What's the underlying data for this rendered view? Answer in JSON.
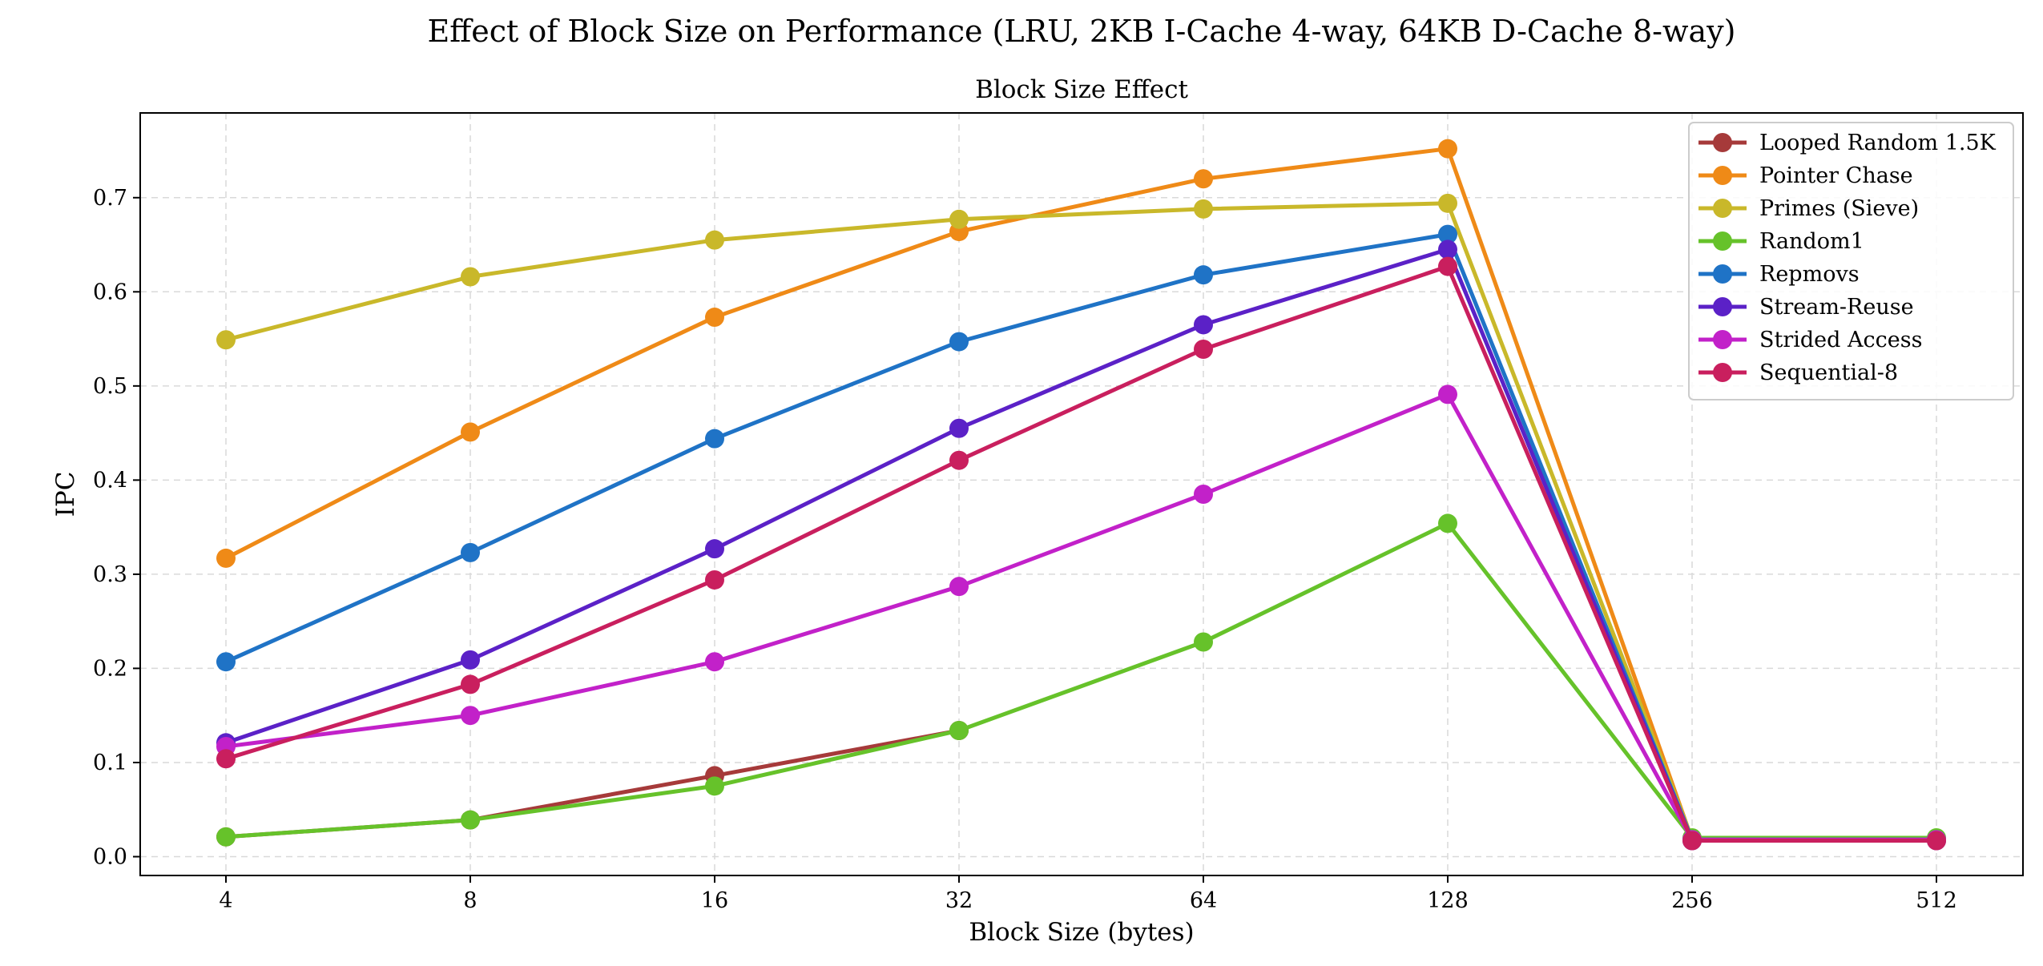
{
  "suptitle": "Effect of Block Size on Performance (LRU, 2KB I-Cache 4-way, 64KB D-Cache 8-way)",
  "chart_data": {
    "type": "line",
    "title": "Block Size Effect",
    "xlabel": "Block Size (bytes)",
    "ylabel": "IPC",
    "categories": [
      "4",
      "8",
      "16",
      "32",
      "64",
      "128",
      "256",
      "512"
    ],
    "ylim": [
      -0.02,
      0.79
    ],
    "yticks": [
      "0.0",
      "0.1",
      "0.2",
      "0.3",
      "0.4",
      "0.5",
      "0.6",
      "0.7"
    ],
    "grid": true,
    "legend_position": "top-right",
    "series": [
      {
        "name": "Looped Random 1.5K",
        "color": "#a63a3a",
        "values": [
          0.021,
          0.039,
          0.086,
          0.134,
          null,
          null,
          null,
          null
        ]
      },
      {
        "name": "Pointer Chase",
        "color": "#ef8a17",
        "values": [
          0.317,
          0.451,
          0.573,
          0.664,
          0.72,
          0.752,
          0.018,
          0.018
        ]
      },
      {
        "name": "Primes (Sieve)",
        "color": "#c9b82a",
        "values": [
          0.549,
          0.616,
          0.655,
          0.677,
          0.688,
          0.694,
          0.019,
          0.019
        ]
      },
      {
        "name": "Random1",
        "color": "#66c22a",
        "values": [
          0.021,
          0.039,
          0.075,
          0.134,
          0.228,
          0.354,
          0.02,
          0.02
        ]
      },
      {
        "name": "Repmovs",
        "color": "#1f73c6",
        "values": [
          0.207,
          0.323,
          0.444,
          0.547,
          0.618,
          0.661,
          0.018,
          0.018
        ]
      },
      {
        "name": "Stream-Reuse",
        "color": "#5b21c7",
        "values": [
          0.121,
          0.209,
          0.327,
          0.455,
          0.565,
          0.645,
          0.017,
          0.017
        ]
      },
      {
        "name": "Strided Access",
        "color": "#c221c9",
        "values": [
          0.117,
          0.15,
          0.207,
          0.287,
          0.385,
          0.491,
          0.018,
          0.018
        ]
      },
      {
        "name": "Sequential-8",
        "color": "#c91f5e",
        "values": [
          0.104,
          0.183,
          0.294,
          0.421,
          0.539,
          0.627,
          0.017,
          0.017
        ]
      }
    ]
  }
}
